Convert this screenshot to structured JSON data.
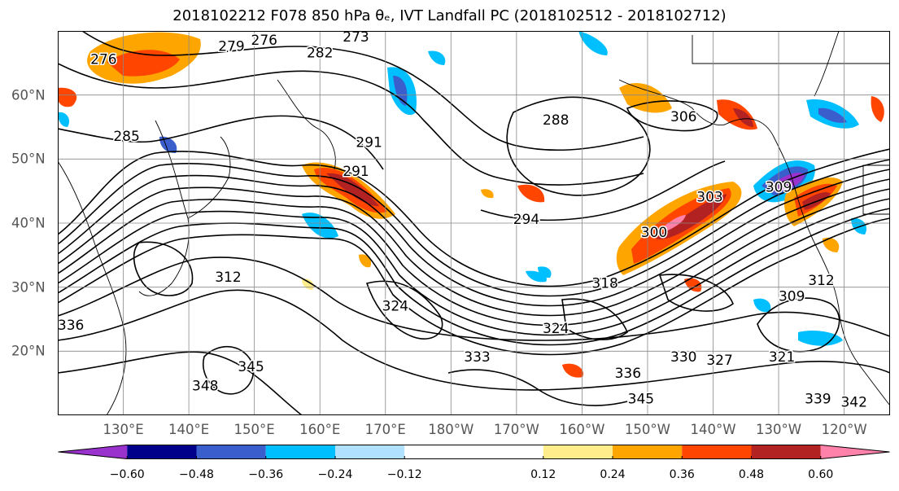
{
  "title": "2018102212 F078 850 hPa θₑ, IVT Landfall PC (2018102512 - 2018102712)",
  "map": {
    "extent": {
      "lon_min": 120,
      "lon_max": 247,
      "lat_min": 10,
      "lat_max": 70
    },
    "lat_ticks": [
      {
        "value": 20,
        "label": "20°N"
      },
      {
        "value": 30,
        "label": "30°N"
      },
      {
        "value": 40,
        "label": "40°N"
      },
      {
        "value": 50,
        "label": "50°N"
      },
      {
        "value": 60,
        "label": "60°N"
      }
    ],
    "lon_ticks": [
      {
        "value": 130,
        "label": "130°E"
      },
      {
        "value": 140,
        "label": "140°E"
      },
      {
        "value": 150,
        "label": "150°E"
      },
      {
        "value": 160,
        "label": "160°E"
      },
      {
        "value": 170,
        "label": "170°E"
      },
      {
        "value": 180,
        "label": "180°W"
      },
      {
        "value": 190,
        "label": "170°W"
      },
      {
        "value": 200,
        "label": "160°W"
      },
      {
        "value": 210,
        "label": "150°W"
      },
      {
        "value": 220,
        "label": "140°W"
      },
      {
        "value": 230,
        "label": "130°W"
      },
      {
        "value": 240,
        "label": "120°W"
      }
    ],
    "contour_labels": [
      {
        "text": "276",
        "lon": 127,
        "lat": 65.5
      },
      {
        "text": "279",
        "lon": 146.5,
        "lat": 67.5
      },
      {
        "text": "276",
        "lon": 151.5,
        "lat": 68.5
      },
      {
        "text": "273",
        "lon": 165.5,
        "lat": 69
      },
      {
        "text": "282",
        "lon": 160,
        "lat": 66.5
      },
      {
        "text": "285",
        "lon": 130.5,
        "lat": 53.5
      },
      {
        "text": "291",
        "lon": 167.5,
        "lat": 52.5
      },
      {
        "text": "291",
        "lon": 165.5,
        "lat": 48
      },
      {
        "text": "288",
        "lon": 196,
        "lat": 56
      },
      {
        "text": "294",
        "lon": 191.5,
        "lat": 40.5
      },
      {
        "text": "306",
        "lon": 215.5,
        "lat": 56.5
      },
      {
        "text": "303",
        "lon": 219.5,
        "lat": 44
      },
      {
        "text": "300",
        "lon": 211,
        "lat": 38.5
      },
      {
        "text": "309",
        "lon": 230,
        "lat": 45.5
      },
      {
        "text": "312",
        "lon": 146,
        "lat": 31.5
      },
      {
        "text": "324",
        "lon": 171.5,
        "lat": 27
      },
      {
        "text": "318",
        "lon": 203.5,
        "lat": 30.5
      },
      {
        "text": "324",
        "lon": 196,
        "lat": 23.5
      },
      {
        "text": "333",
        "lon": 184,
        "lat": 19
      },
      {
        "text": "330",
        "lon": 215.5,
        "lat": 19
      },
      {
        "text": "327",
        "lon": 221,
        "lat": 18.5
      },
      {
        "text": "321",
        "lon": 230.5,
        "lat": 19
      },
      {
        "text": "336",
        "lon": 207,
        "lat": 16.5
      },
      {
        "text": "345",
        "lon": 209,
        "lat": 12.5
      },
      {
        "text": "339",
        "lon": 236,
        "lat": 12.5
      },
      {
        "text": "342",
        "lon": 241.5,
        "lat": 12
      },
      {
        "text": "348",
        "lon": 142.5,
        "lat": 14.5
      },
      {
        "text": "345",
        "lon": 149.5,
        "lat": 17.5
      },
      {
        "text": "336",
        "lon": 122,
        "lat": 24
      },
      {
        "text": "309",
        "lon": 232,
        "lat": 28.5
      },
      {
        "text": "312",
        "lon": 236.5,
        "lat": 31
      }
    ]
  },
  "colorbar": {
    "colors": [
      "#9a32cd",
      "#00008b",
      "#3a5fcd",
      "#00bfff",
      "#b0e2ff",
      "#ffffff",
      "#ffec8b",
      "#ffa500",
      "#ff4500",
      "#b22222",
      "#ff82ab"
    ],
    "boundaries": [
      -0.72,
      -0.6,
      -0.48,
      -0.36,
      -0.24,
      -0.12,
      0.12,
      0.24,
      0.36,
      0.48,
      0.6,
      0.72
    ],
    "ticks": [
      {
        "value": -0.6,
        "label": "−0.60"
      },
      {
        "value": -0.48,
        "label": "−0.48"
      },
      {
        "value": -0.36,
        "label": "−0.36"
      },
      {
        "value": -0.24,
        "label": "−0.24"
      },
      {
        "value": -0.12,
        "label": "−0.12"
      },
      {
        "value": 0.12,
        "label": "0.12"
      },
      {
        "value": 0.24,
        "label": "0.24"
      },
      {
        "value": 0.36,
        "label": "0.36"
      },
      {
        "value": 0.48,
        "label": "0.48"
      },
      {
        "value": 0.6,
        "label": "0.60"
      }
    ]
  }
}
